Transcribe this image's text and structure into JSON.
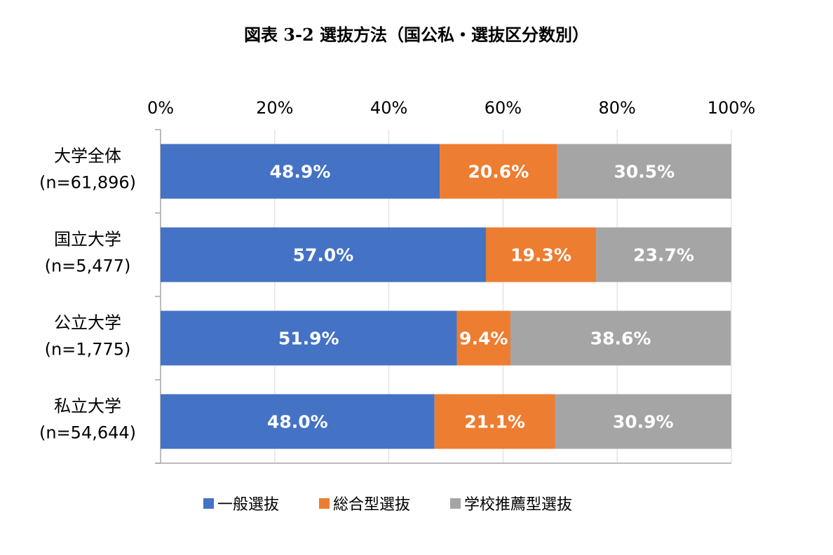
{
  "chart_data": {
    "type": "bar",
    "orientation": "horizontal",
    "stacked": "percent",
    "title": "図表  3-2    選抜方法（国公私・選抜区分数別）",
    "xlim": [
      0,
      100
    ],
    "x_ticks": [
      "0%",
      "20%",
      "40%",
      "60%",
      "80%",
      "100%"
    ],
    "x_tick_values": [
      0,
      20,
      40,
      60,
      80,
      100
    ],
    "categories": [
      [
        "大学全体",
        "(n=61,896)"
      ],
      [
        "国立大学",
        "(n=5,477)"
      ],
      [
        "公立大学",
        "(n=1,775)"
      ],
      [
        "私立大学",
        "(n=54,644)"
      ]
    ],
    "series": [
      {
        "name": "一般選抜",
        "color": "#4472C4",
        "values": [
          48.9,
          57.0,
          51.9,
          48.0
        ],
        "labels": [
          "48.9%",
          "57.0%",
          "51.9%",
          "48.0%"
        ]
      },
      {
        "name": "総合型選抜",
        "color": "#ED7D31",
        "values": [
          20.6,
          19.3,
          9.4,
          21.1
        ],
        "labels": [
          "20.6%",
          "19.3%",
          "9.4%",
          "21.1%"
        ]
      },
      {
        "name": "学校推薦型選抜",
        "color": "#A5A5A5",
        "values": [
          30.5,
          23.7,
          38.6,
          30.9
        ],
        "labels": [
          "30.5%",
          "23.7%",
          "38.6%",
          "30.9%"
        ]
      }
    ],
    "grid": true,
    "legend_position": "bottom"
  }
}
